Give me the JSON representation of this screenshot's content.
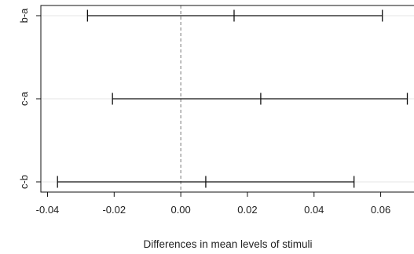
{
  "chart_data": {
    "type": "errorbar",
    "orientation": "horizontal",
    "title": "",
    "xlabel": "Differences in mean levels of stimuli",
    "ylabel": "",
    "xlim": [
      -0.042,
      0.07
    ],
    "xticks": [
      -0.04,
      -0.02,
      0.0,
      0.02,
      0.04,
      0.06
    ],
    "xtick_labels": [
      "-0.04",
      "-0.02",
      "0.00",
      "0.02",
      "0.04",
      "0.06"
    ],
    "reference_line": {
      "x": 0,
      "style": "dashed",
      "color": "#777777"
    },
    "grid": "horizontal",
    "comparisons": [
      {
        "label": "b-a",
        "diff": 0.016,
        "lwr": -0.028,
        "upr": 0.0605
      },
      {
        "label": "c-a",
        "diff": 0.024,
        "lwr": -0.0205,
        "upr": 0.068
      },
      {
        "label": "c-b",
        "diff": 0.0075,
        "lwr": -0.037,
        "upr": 0.052
      }
    ],
    "colors": {
      "interval": "#111111",
      "axis": "#111111",
      "grid": "#e6e6e6"
    }
  }
}
